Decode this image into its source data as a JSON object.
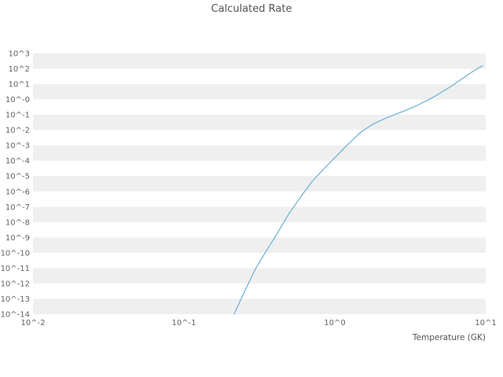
{
  "chart_data": {
    "type": "line",
    "title": "Calculated Rate",
    "xlabel": "Temperature (GK)",
    "x_scale": "log",
    "y_scale": "log",
    "x_range_log10": [
      -2,
      1
    ],
    "y_range_log10": [
      -14,
      3
    ],
    "x_ticks": [
      {
        "log10": -2,
        "label": "10^-2"
      },
      {
        "log10": -1,
        "label": "10^-1"
      },
      {
        "log10": 0,
        "label": "10^0"
      },
      {
        "log10": 1,
        "label": "10^1"
      }
    ],
    "y_ticks": [
      {
        "log10": 3,
        "label": "10^3"
      },
      {
        "log10": 2,
        "label": "10^2"
      },
      {
        "log10": 1,
        "label": "10^1"
      },
      {
        "log10": 0,
        "label": "10^-0"
      },
      {
        "log10": -1,
        "label": "10^-1"
      },
      {
        "log10": -2,
        "label": "10^-2"
      },
      {
        "log10": -3,
        "label": "10^-3"
      },
      {
        "log10": -4,
        "label": "10^-4"
      },
      {
        "log10": -5,
        "label": "10^-5"
      },
      {
        "log10": -6,
        "label": "10^-6"
      },
      {
        "log10": -7,
        "label": "10^-7"
      },
      {
        "log10": -8,
        "label": "10^-8"
      },
      {
        "log10": -9,
        "label": "10^-9"
      },
      {
        "log10": -10,
        "label": "10^-10"
      },
      {
        "log10": -11,
        "label": "10^-11"
      },
      {
        "log10": -12,
        "label": "10^-12"
      },
      {
        "log10": -13,
        "label": "10^-13"
      },
      {
        "log10": -14,
        "label": "10^-14"
      }
    ],
    "series": [
      {
        "name": "calculated-rate",
        "color": "#6baed6",
        "x": [
          0.215,
          0.25,
          0.3,
          0.35,
          0.4,
          0.5,
          0.6,
          0.7,
          0.85,
          1.0,
          1.2,
          1.5,
          1.8,
          2.2,
          2.8,
          3.5,
          4.5,
          6.0,
          8.0,
          9.5
        ],
        "y_log10": [
          -14.0,
          -12.6,
          -11.0,
          -9.9,
          -9.0,
          -7.4,
          -6.3,
          -5.4,
          -4.5,
          -3.8,
          -3.0,
          -2.1,
          -1.6,
          -1.2,
          -0.8,
          -0.4,
          0.15,
          0.9,
          1.75,
          2.2
        ]
      }
    ],
    "style": {
      "background": "#ffffff",
      "stripe_color": "#efefef",
      "line_color": "#6baed6",
      "tick_color": "#636363",
      "title_color": "#535353"
    },
    "legend": "none",
    "grid": "horizontal-stripes"
  }
}
